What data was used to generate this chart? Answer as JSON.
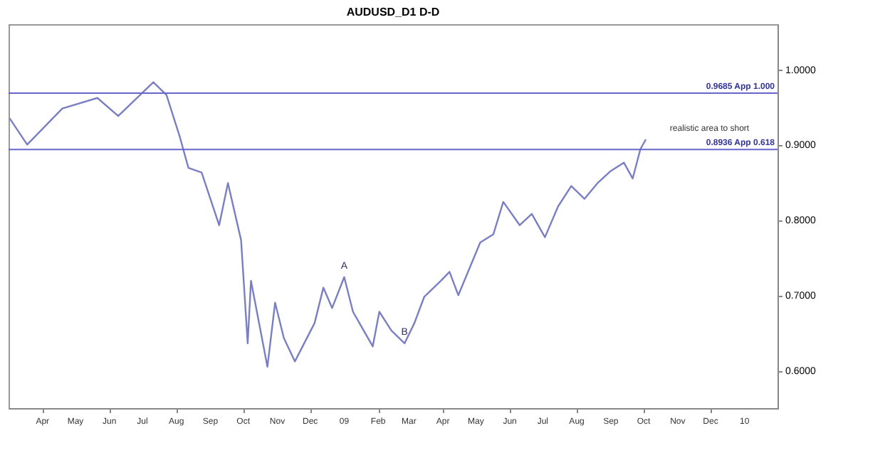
{
  "chart_data": {
    "type": "line",
    "title": "AUDUSD_D1 D-D",
    "x": [
      "2008-03-02",
      "2008-03-18",
      "2008-04-19",
      "2008-05-21",
      "2008-06-09",
      "2008-07-11",
      "2008-07-23",
      "2008-08-04",
      "2008-08-12",
      "2008-08-24",
      "2008-09-09",
      "2008-09-17",
      "2008-09-29",
      "2008-10-05",
      "2008-10-08",
      "2008-10-23",
      "2008-10-30",
      "2008-11-07",
      "2008-11-17",
      "2008-12-05",
      "2008-12-13",
      "2008-12-21",
      "2009-01-01",
      "2009-01-09",
      "2009-01-27",
      "2009-02-02",
      "2009-02-13",
      "2009-02-25",
      "2009-03-06",
      "2009-03-15",
      "2009-03-30",
      "2009-04-07",
      "2009-04-15",
      "2009-05-05",
      "2009-05-17",
      "2009-05-26",
      "2009-06-10",
      "2009-06-21",
      "2009-07-03",
      "2009-07-15",
      "2009-07-27",
      "2009-08-08",
      "2009-08-20",
      "2009-09-01",
      "2009-09-13",
      "2009-09-21",
      "2009-09-28",
      "2009-10-03"
    ],
    "series": [
      {
        "color": "#7a7fc4",
        "values": [
          0.935,
          0.9,
          0.948,
          0.962,
          0.938,
          0.983,
          0.966,
          0.911,
          0.869,
          0.863,
          0.793,
          0.849,
          0.773,
          0.636,
          0.719,
          0.605,
          0.69,
          0.643,
          0.612,
          0.663,
          0.71,
          0.683,
          0.724,
          0.678,
          0.632,
          0.678,
          0.653,
          0.636,
          0.663,
          0.698,
          0.719,
          0.731,
          0.7,
          0.77,
          0.781,
          0.824,
          0.793,
          0.808,
          0.777,
          0.818,
          0.845,
          0.828,
          0.849,
          0.865,
          0.876,
          0.855,
          0.894,
          0.907
        ]
      }
    ],
    "xlim": [
      "2008-03-01",
      "2010-01-31"
    ],
    "xticks": [
      {
        "value": "2008-04-01",
        "label": "Apr"
      },
      {
        "value": "2008-05-01",
        "label": "May"
      },
      {
        "value": "2008-06-01",
        "label": "Jun"
      },
      {
        "value": "2008-07-01",
        "label": "Jul"
      },
      {
        "value": "2008-08-01",
        "label": "Aug"
      },
      {
        "value": "2008-09-01",
        "label": "Sep"
      },
      {
        "value": "2008-10-01",
        "label": "Oct"
      },
      {
        "value": "2008-11-01",
        "label": "Nov"
      },
      {
        "value": "2008-12-01",
        "label": "Dec"
      },
      {
        "value": "2009-01-01",
        "label": "09"
      },
      {
        "value": "2009-02-01",
        "label": "Feb"
      },
      {
        "value": "2009-03-01",
        "label": "Mar"
      },
      {
        "value": "2009-04-01",
        "label": "Apr"
      },
      {
        "value": "2009-05-01",
        "label": "May"
      },
      {
        "value": "2009-06-01",
        "label": "Jun"
      },
      {
        "value": "2009-07-01",
        "label": "Jul"
      },
      {
        "value": "2009-08-01",
        "label": "Aug"
      },
      {
        "value": "2009-09-01",
        "label": "Sep"
      },
      {
        "value": "2009-10-01",
        "label": "Oct"
      },
      {
        "value": "2009-11-01",
        "label": "Nov"
      },
      {
        "value": "2009-12-01",
        "label": "Dec"
      },
      {
        "value": "2010-01-01",
        "label": "10"
      }
    ],
    "ylim": [
      0.55,
      1.06
    ],
    "yticks": [
      {
        "value": 0.6,
        "label": "0.6000"
      },
      {
        "value": 0.7,
        "label": "0.7000"
      },
      {
        "value": 0.8,
        "label": "0.8000"
      },
      {
        "value": 0.9,
        "label": "0.9000"
      },
      {
        "value": 1.0,
        "label": "1.0000"
      }
    ],
    "ref_lines": [
      {
        "axis": "y",
        "value": 0.9685,
        "label": "0.9685 App 1.000",
        "color": "#6666cc"
      },
      {
        "axis": "y",
        "value": 0.8936,
        "label": "0.8936 App 0.618",
        "color": "#6666cc"
      }
    ],
    "annotations": [
      {
        "text": "A",
        "x": "2009-01-01",
        "y": 0.724
      },
      {
        "text": "B",
        "x": "2009-02-25",
        "y": 0.636
      },
      "realistic area to short"
    ],
    "grid": false
  }
}
